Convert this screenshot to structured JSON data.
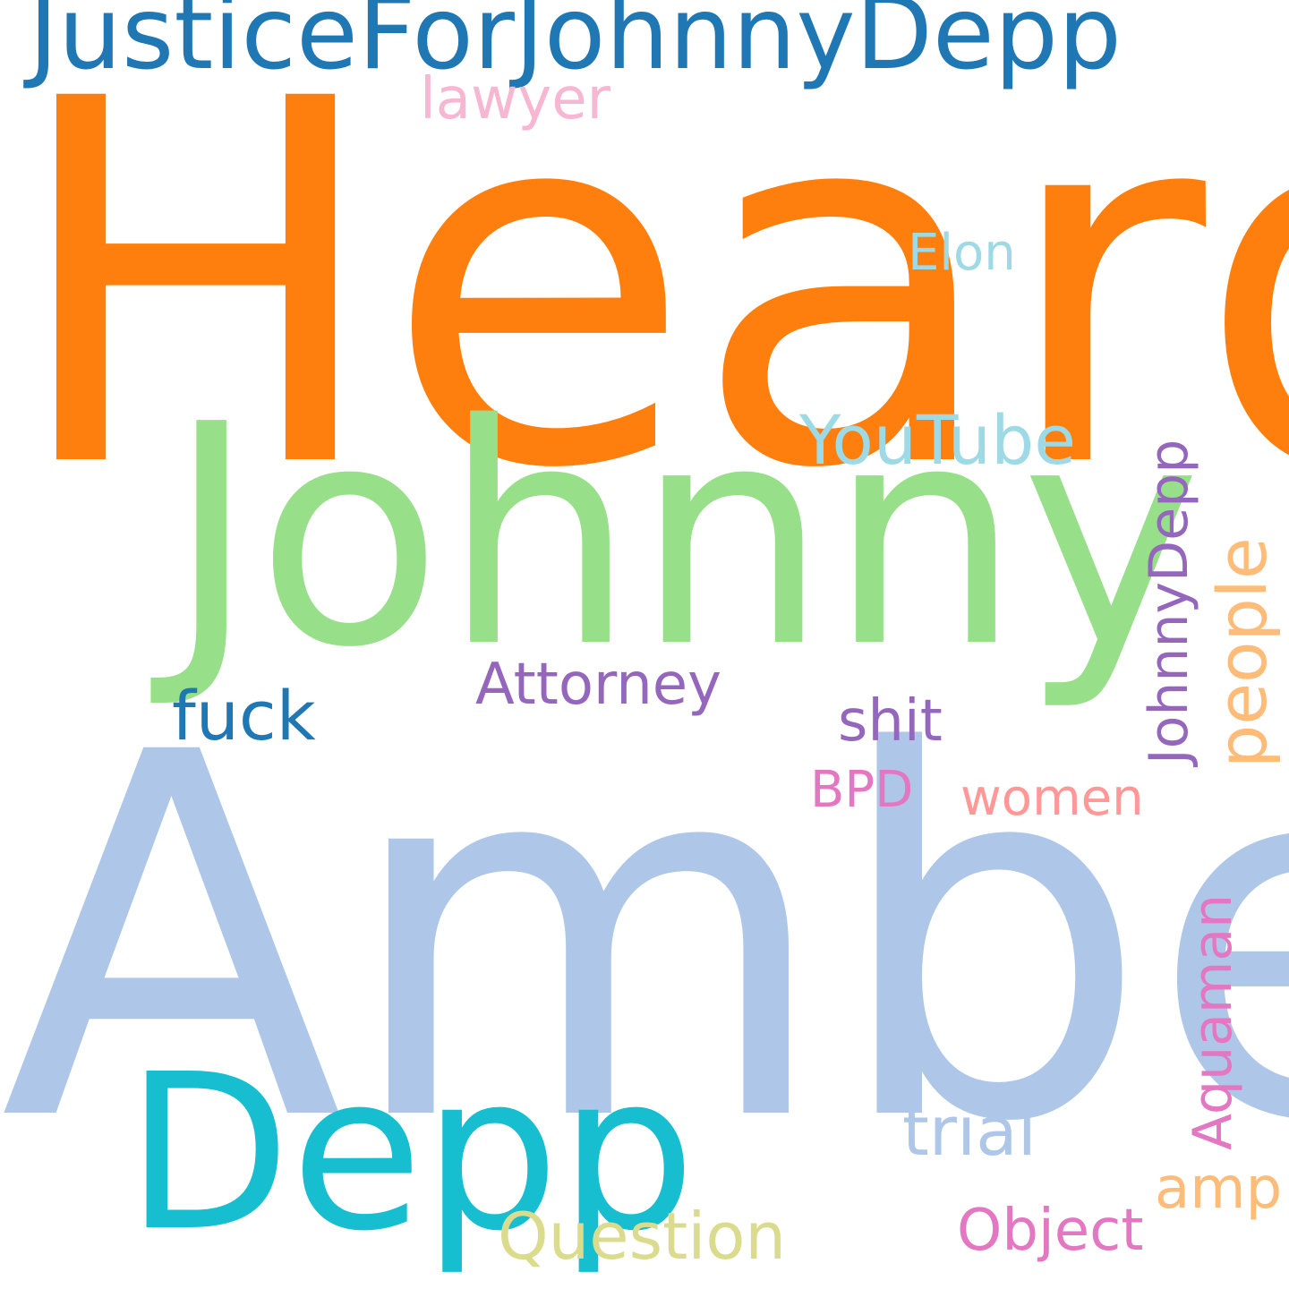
{
  "words": {
    "heard": {
      "text": "Heard",
      "color": "#ff7f0e"
    },
    "amber": {
      "text": "Amber",
      "color": "#aec7e8"
    },
    "johnny": {
      "text": "Johnny",
      "color": "#98df8a"
    },
    "depp": {
      "text": "Depp",
      "color": "#17becf"
    },
    "justice": {
      "text": "JusticeForJohnnyDepp",
      "color": "#1f77b4"
    },
    "youtube": {
      "text": "YouTube",
      "color": "#9edae5"
    },
    "fuck": {
      "text": "fuck",
      "color": "#1f77b4"
    },
    "attorney": {
      "text": "Attorney",
      "color": "#9467bd"
    },
    "lawyer": {
      "text": "lawyer",
      "color": "#f7b6d2"
    },
    "elon": {
      "text": "Elon",
      "color": "#9edae5"
    },
    "shit": {
      "text": "shit",
      "color": "#9467bd"
    },
    "bpd": {
      "text": "BPD",
      "color": "#e377c2"
    },
    "women": {
      "text": "women",
      "color": "#ff9896"
    },
    "trial": {
      "text": "trial",
      "color": "#aec7e8"
    },
    "amp": {
      "text": "amp",
      "color": "#ffbb78"
    },
    "question": {
      "text": "Question",
      "color": "#dbdb8d"
    },
    "object": {
      "text": "Object",
      "color": "#e377c2"
    },
    "johnnydepp": {
      "text": "JohnnyDepp",
      "color": "#9467bd"
    },
    "people": {
      "text": "people",
      "color": "#ffbb78"
    },
    "aquaman": {
      "text": "Aquaman",
      "color": "#e377c2"
    }
  }
}
